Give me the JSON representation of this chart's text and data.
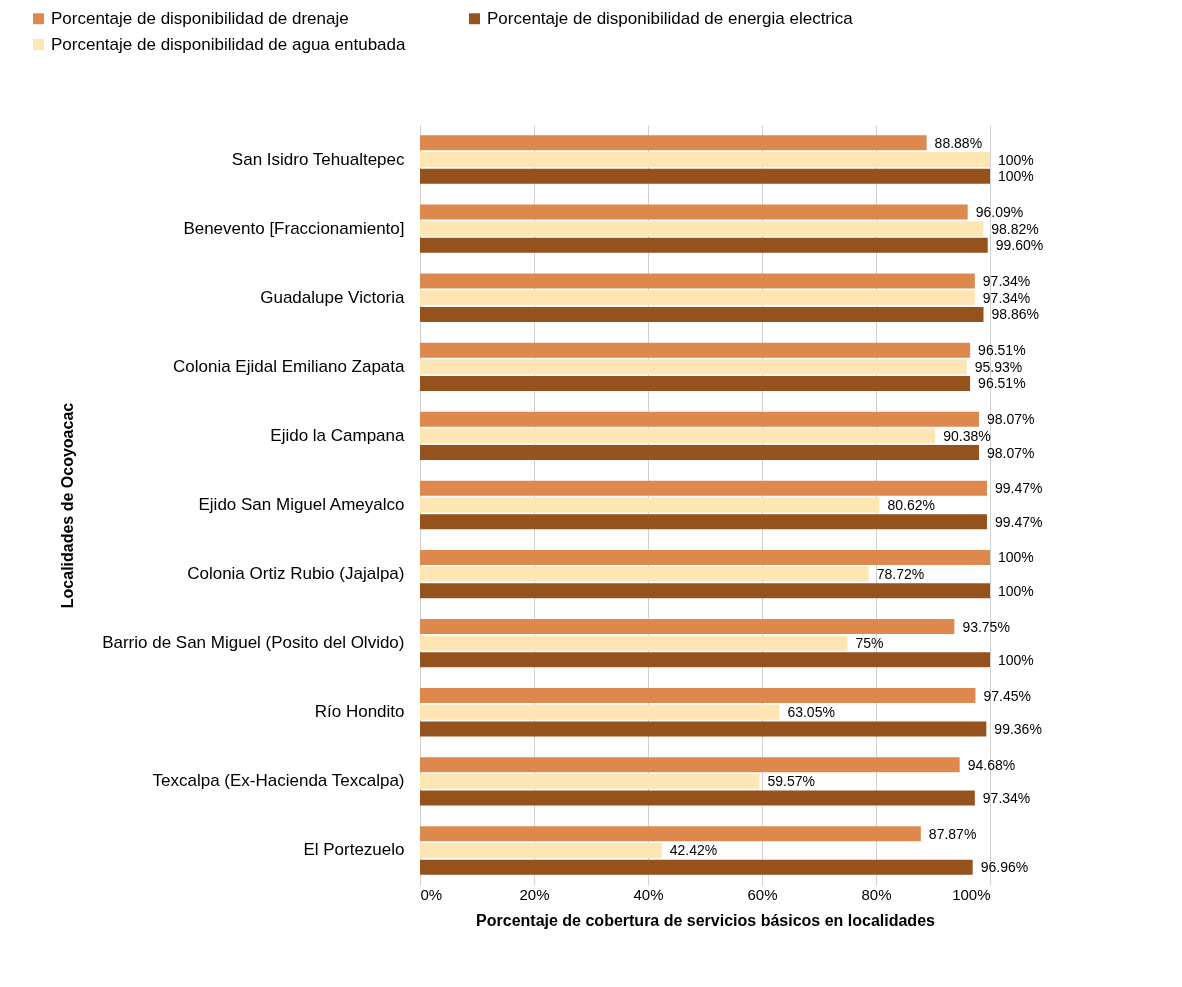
{
  "chart_data": {
    "type": "bar",
    "orientation": "horizontal",
    "xlabel": "Porcentaje de cobertura de servicios básicos en localidades",
    "ylabel": "Localidades de Ocoyoacac",
    "categories": [
      "San Isidro Tehualtepec",
      "Benevento [Fraccionamiento]",
      "Guadalupe Victoria",
      "Colonia Ejidal Emiliano Zapata",
      "Ejido la Campana",
      "Ejido San Miguel Ameyalco",
      "Colonia Ortiz Rubio (Jajalpa)",
      "Barrio de San Miguel (Posito del Olvido)",
      "Río Hondito",
      "Texcalpa (Ex-Hacienda Texcalpa)",
      "El Portezuelo"
    ],
    "series": [
      {
        "name": "Porcentaje de disponibilidad de drenaje",
        "color": "#dd894d",
        "values": [
          88.88,
          96.09,
          97.34,
          96.51,
          98.07,
          99.47,
          100,
          93.75,
          97.45,
          94.68,
          87.87
        ],
        "value_labels": [
          "88.88%",
          "96.09%",
          "97.34%",
          "96.51%",
          "98.07%",
          "99.47%",
          "100%",
          "93.75%",
          "97.45%",
          "94.68%",
          "87.87%"
        ]
      },
      {
        "name": "Porcentaje de disponibilidad de agua entubada",
        "color": "#fde5b4",
        "values": [
          100,
          98.82,
          97.34,
          95.93,
          90.38,
          80.62,
          78.72,
          75,
          63.05,
          59.57,
          42.42
        ],
        "value_labels": [
          "100%",
          "98.82%",
          "97.34%",
          "95.93%",
          "90.38%",
          "80.62%",
          "78.72%",
          "75%",
          "63.05%",
          "59.57%",
          "42.42%"
        ]
      },
      {
        "name": "Porcentaje de disponibilidad de energia electrica",
        "color": "#95521d",
        "values": [
          100,
          99.6,
          98.86,
          96.51,
          98.07,
          99.47,
          100,
          100,
          99.36,
          97.34,
          96.96
        ],
        "value_labels": [
          "100%",
          "99.60%",
          "98.86%",
          "96.51%",
          "98.07%",
          "99.47%",
          "100%",
          "100%",
          "99.36%",
          "97.34%",
          "96.96%"
        ]
      }
    ],
    "xlim": [
      0,
      100
    ],
    "xticks": [
      {
        "value": 0,
        "label": "0%"
      },
      {
        "value": 20,
        "label": "20%"
      },
      {
        "value": 40,
        "label": "40%"
      },
      {
        "value": 60,
        "label": "60%"
      },
      {
        "value": 80,
        "label": "80%"
      },
      {
        "value": 100,
        "label": "100%"
      }
    ],
    "grid": "x",
    "legend": "top"
  }
}
